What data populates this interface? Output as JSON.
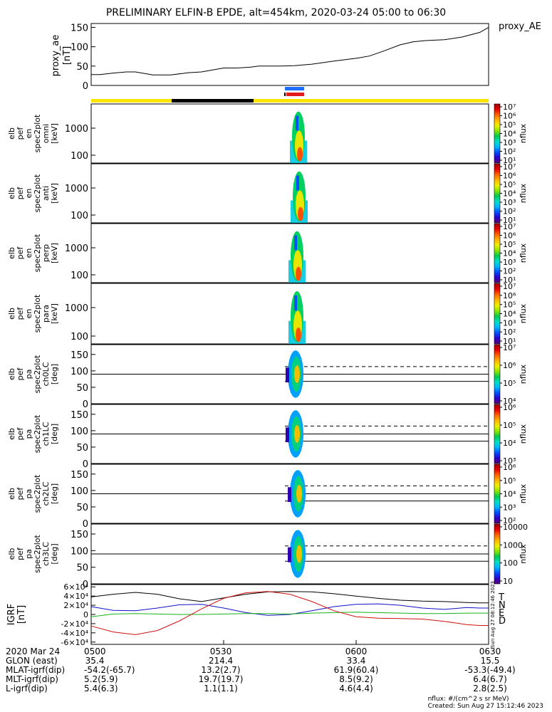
{
  "title": "PRELIMINARY ELFIN-B EPDE, alt=454km, 2020-03-24 05:00 to 06:30",
  "colors": {
    "status_yellow": "#FFE400",
    "status_black": "#000000",
    "marker_blue": "#1E6FFF",
    "marker_red": "#E21B1B",
    "grf_T": "#000000",
    "grf_N": "#1010C8",
    "grf_E": "#18B418",
    "grf_D": "#D01010"
  },
  "colorbar_gradient": [
    "#5a0078",
    "#2a00c8",
    "#0050ff",
    "#00b4ff",
    "#00e0c8",
    "#00c850",
    "#8ce600",
    "#f0f000",
    "#ffb400",
    "#ff6400",
    "#e60000",
    "#a00000"
  ],
  "chart_data": [
    {
      "type": "line",
      "name": "proxy_ae",
      "ylabel": "proxy_ae [nT]",
      "legend": "proxy_AE",
      "ylim": [
        0,
        160
      ],
      "yticks": [
        "0",
        "50",
        "100",
        "150"
      ],
      "x_minutes": [
        0,
        2,
        5,
        8,
        10,
        14,
        18,
        22,
        25,
        30,
        33,
        36,
        38,
        40,
        43,
        46,
        50,
        55,
        60,
        63,
        66,
        70,
        73,
        76,
        80,
        84,
        88,
        90
      ],
      "values": [
        28,
        28,
        32,
        35,
        35,
        27,
        27,
        33,
        35,
        45,
        45,
        47,
        50,
        50,
        50,
        51,
        55,
        63,
        70,
        76,
        88,
        105,
        113,
        116,
        118,
        125,
        137,
        150
      ]
    },
    {
      "type": "heatmap",
      "name": "elb_pef_en_spec2plot_omni",
      "ylabel_lines": [
        "elb",
        "pef",
        "en",
        "spec2plot",
        "omni",
        "[keV]"
      ],
      "yticks": [
        "100",
        "1000"
      ],
      "colorbar_label": "nflux",
      "colorbar_ticks": [
        "10¹",
        "10²",
        "10³",
        "10⁴",
        "10⁵",
        "10⁶",
        "10⁷"
      ]
    },
    {
      "type": "heatmap",
      "name": "elb_pef_en_spec2plot_anti",
      "ylabel_lines": [
        "elb",
        "pef",
        "en",
        "spec2plot",
        "anti",
        "[keV]"
      ],
      "yticks": [
        "100",
        "1000"
      ],
      "colorbar_label": "nflux",
      "colorbar_ticks": [
        "10¹",
        "10²",
        "10³",
        "10⁴",
        "10⁵",
        "10⁶",
        "10⁷"
      ]
    },
    {
      "type": "heatmap",
      "name": "elb_pef_en_spec2plot_perp",
      "ylabel_lines": [
        "elb",
        "pef",
        "en",
        "spec2plot",
        "perp",
        "[keV]"
      ],
      "yticks": [
        "100",
        "1000"
      ],
      "colorbar_label": "nflux",
      "colorbar_ticks": [
        "10¹",
        "10²",
        "10³",
        "10⁴",
        "10⁵",
        "10⁶",
        "10⁷"
      ]
    },
    {
      "type": "heatmap",
      "name": "elb_pef_en_spec2plot_para",
      "ylabel_lines": [
        "elb",
        "pef",
        "en",
        "spec2plot",
        "para",
        "[keV]"
      ],
      "yticks": [
        "100",
        "1000"
      ],
      "colorbar_label": "nflux",
      "colorbar_ticks": [
        "10¹",
        "10²",
        "10³",
        "10⁴",
        "10⁵",
        "10⁶",
        "10⁷"
      ]
    },
    {
      "type": "heatmap",
      "name": "elb_pef_pa_spec2plot_ch0LC",
      "ylabel_lines": [
        "elb",
        "pef",
        "pa",
        "spec2plot",
        "ch0LC",
        "[deg]"
      ],
      "yticks": [
        "0",
        "50",
        "100",
        "150"
      ],
      "colorbar_label": "nflux",
      "colorbar_ticks": [
        "10⁴",
        "10⁵",
        "10⁶",
        "10⁷"
      ]
    },
    {
      "type": "heatmap",
      "name": "elb_pef_pa_spec2plot_ch1LC",
      "ylabel_lines": [
        "elb",
        "pef",
        "pa",
        "spec2plot",
        "ch1LC",
        "[deg]"
      ],
      "yticks": [
        "0",
        "50",
        "100",
        "150"
      ],
      "colorbar_label": "nflux",
      "colorbar_ticks": [
        "10³",
        "10⁴",
        "10⁵",
        "10⁶"
      ]
    },
    {
      "type": "heatmap",
      "name": "elb_pef_pa_spec2plot_ch2LC",
      "ylabel_lines": [
        "elb",
        "pef",
        "pa",
        "spec2plot",
        "ch2LC",
        "[deg]"
      ],
      "yticks": [
        "0",
        "50",
        "100",
        "150"
      ],
      "colorbar_label": "nflux",
      "colorbar_ticks": [
        "10²",
        "10³",
        "10⁴",
        "10⁵",
        "10⁶"
      ]
    },
    {
      "type": "heatmap",
      "name": "elb_pef_pa_spec2plot_ch3LC",
      "ylabel_lines": [
        "elb",
        "pef",
        "pa",
        "spec2plot",
        "ch3LC",
        "[deg]"
      ],
      "yticks": [
        "0",
        "50",
        "100",
        "150"
      ],
      "colorbar_label": "nflux",
      "colorbar_ticks": [
        "10",
        "100",
        "1000",
        "10000"
      ]
    },
    {
      "type": "line",
      "name": "IGRF",
      "ylabel": "IGRF [nT]",
      "ylim": [
        -65000,
        65000
      ],
      "yticks": [
        "-6×10⁴",
        "-4×10⁴",
        "-2×10⁴",
        "0",
        "2×10⁴",
        "4×10⁴",
        "6×10⁴"
      ],
      "ytick_values": [
        -60000,
        -40000,
        -20000,
        0,
        20000,
        40000,
        60000
      ],
      "side_note": "Sun Aug 27 08:12:46 2023",
      "x_minutes": [
        0,
        5,
        10,
        15,
        20,
        25,
        30,
        35,
        40,
        45,
        50,
        55,
        60,
        65,
        70,
        75,
        80,
        85,
        88,
        90
      ],
      "series": [
        {
          "name": "T",
          "values": [
            38000,
            44000,
            48000,
            44000,
            34000,
            28000,
            36000,
            44000,
            49000,
            50000,
            49000,
            45000,
            40000,
            35000,
            31000,
            29000,
            28000,
            26000,
            25000,
            25000
          ]
        },
        {
          "name": "N",
          "values": [
            17000,
            9000,
            8000,
            14000,
            21000,
            22000,
            14000,
            4000,
            -2000,
            0,
            8000,
            17000,
            22000,
            23000,
            20000,
            14000,
            11000,
            15000,
            14000,
            14000
          ]
        },
        {
          "name": "E",
          "values": [
            -5000,
            1000,
            2000,
            1000,
            0,
            0,
            1000,
            2000,
            2000,
            1000,
            3000,
            4000,
            5000,
            4000,
            3000,
            2000,
            2000,
            3000,
            3000,
            3000
          ]
        },
        {
          "name": "D",
          "values": [
            -25000,
            -38000,
            -44000,
            -35000,
            -14000,
            12000,
            35000,
            47000,
            50000,
            44000,
            28000,
            8000,
            -5000,
            -8000,
            -9000,
            -10000,
            -15000,
            -22000,
            -24000,
            -24000
          ]
        }
      ]
    }
  ],
  "x_axis": {
    "ticks": [
      {
        "label": "0500",
        "minute": 0
      },
      {
        "label": "0530",
        "minute": 30
      },
      {
        "label": "0600",
        "minute": 60
      },
      {
        "label": "0630",
        "minute": 90
      }
    ]
  },
  "ephemeris": {
    "labels": [
      "2020 Mar 24",
      "GLON (east)",
      "MLAT-igrf(dip)",
      "MLT-igrf(dip)",
      "L-igrf(dip)"
    ],
    "columns": [
      [
        "0500",
        "35.4",
        "-54.2(-65.7)",
        "5.2(5.9)",
        "5.4(6.3)"
      ],
      [
        "0530",
        "214.4",
        "13.2(2.7)",
        "19.7(19.7)",
        "1.1(1.1)"
      ],
      [
        "0600",
        "33.4",
        "61.9(60.4)",
        "8.5(9.2)",
        "4.6(4.4)"
      ],
      [
        "0630",
        "15.5",
        "-53.3(-49.4)",
        "6.4(6.7)",
        "2.8(2.5)"
      ]
    ]
  },
  "footer": {
    "units": "nflux: #/(cm^2 s sr MeV)",
    "created": "Created: Sun Aug 27 15:12:46 2023"
  }
}
